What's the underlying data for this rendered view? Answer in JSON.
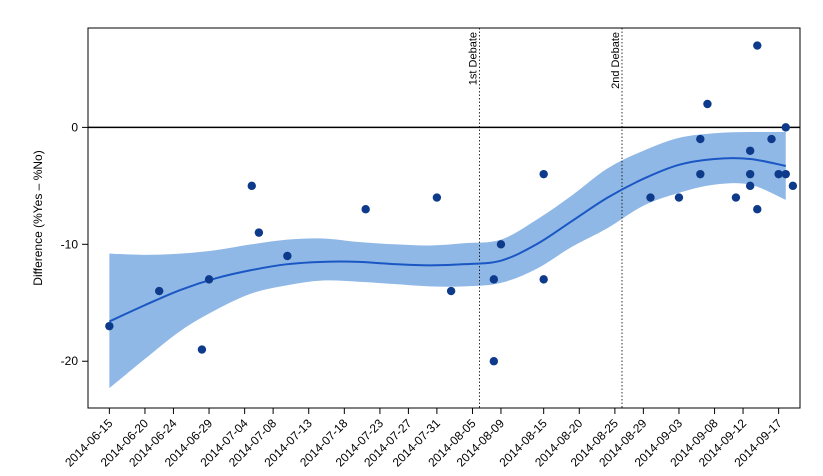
{
  "chart_data": {
    "type": "scatter",
    "ylabel": "Difference (%Yes – %No)",
    "xlabel": "",
    "ylim": [
      -24,
      8.5
    ],
    "xlim": [
      "2014-06-12",
      "2014-09-20"
    ],
    "yticks": [
      0,
      -10,
      -20
    ],
    "ytick_labels": [
      "0",
      "-10",
      "-20"
    ],
    "xticks": [
      "2014-06-15",
      "2014-06-20",
      "2014-06-24",
      "2014-06-29",
      "2014-07-04",
      "2014-07-08",
      "2014-07-13",
      "2014-07-18",
      "2014-07-23",
      "2014-07-27",
      "2014-07-31",
      "2014-08-05",
      "2014-08-09",
      "2014-08-15",
      "2014-08-20",
      "2014-08-25",
      "2014-08-29",
      "2014-09-03",
      "2014-09-08",
      "2014-09-12",
      "2014-09-17"
    ],
    "reference_line_y": 0,
    "events": [
      {
        "date": "2014-08-06",
        "label": "1st Debate"
      },
      {
        "date": "2014-08-26",
        "label": "2nd Debate"
      }
    ],
    "colors": {
      "points": "#0d3a8a",
      "trend": "#1a56c4",
      "band": "#8fb8e6",
      "frame": "#000000"
    },
    "points": [
      {
        "x": "2014-06-15",
        "y": -17
      },
      {
        "x": "2014-06-22",
        "y": -14
      },
      {
        "x": "2014-06-28",
        "y": -19
      },
      {
        "x": "2014-06-29",
        "y": -13
      },
      {
        "x": "2014-07-05",
        "y": -5
      },
      {
        "x": "2014-07-06",
        "y": -9
      },
      {
        "x": "2014-07-10",
        "y": -11
      },
      {
        "x": "2014-07-21",
        "y": -7
      },
      {
        "x": "2014-07-31",
        "y": -6
      },
      {
        "x": "2014-08-02",
        "y": -14
      },
      {
        "x": "2014-08-08",
        "y": -13
      },
      {
        "x": "2014-08-08",
        "y": -20
      },
      {
        "x": "2014-08-09",
        "y": -10
      },
      {
        "x": "2014-08-15",
        "y": -4
      },
      {
        "x": "2014-08-15",
        "y": -13
      },
      {
        "x": "2014-08-30",
        "y": -6
      },
      {
        "x": "2014-09-03",
        "y": -6
      },
      {
        "x": "2014-09-06",
        "y": -1
      },
      {
        "x": "2014-09-06",
        "y": -4
      },
      {
        "x": "2014-09-07",
        "y": 2
      },
      {
        "x": "2014-09-11",
        "y": -6
      },
      {
        "x": "2014-09-13",
        "y": -2
      },
      {
        "x": "2014-09-13",
        "y": -4
      },
      {
        "x": "2014-09-13",
        "y": -5
      },
      {
        "x": "2014-09-14",
        "y": 7
      },
      {
        "x": "2014-09-14",
        "y": -7
      },
      {
        "x": "2014-09-16",
        "y": -1
      },
      {
        "x": "2014-09-17",
        "y": -4
      },
      {
        "x": "2014-09-18",
        "y": -4
      },
      {
        "x": "2014-09-18",
        "y": 0
      },
      {
        "x": "2014-09-19",
        "y": -5
      }
    ],
    "trend": [
      {
        "x": "2014-06-15",
        "y": -16.6,
        "lo": -22.3,
        "hi": -10.8
      },
      {
        "x": "2014-06-20",
        "y": -15.2,
        "lo": -19.8,
        "hi": -10.9
      },
      {
        "x": "2014-06-25",
        "y": -13.9,
        "lo": -17.4,
        "hi": -10.8
      },
      {
        "x": "2014-06-30",
        "y": -12.9,
        "lo": -15.6,
        "hi": -10.5
      },
      {
        "x": "2014-07-05",
        "y": -12.2,
        "lo": -14.2,
        "hi": -10.0
      },
      {
        "x": "2014-07-10",
        "y": -11.7,
        "lo": -13.5,
        "hi": -9.6
      },
      {
        "x": "2014-07-15",
        "y": -11.5,
        "lo": -13.1,
        "hi": -9.5
      },
      {
        "x": "2014-07-20",
        "y": -11.5,
        "lo": -13.2,
        "hi": -9.8
      },
      {
        "x": "2014-07-25",
        "y": -11.7,
        "lo": -13.4,
        "hi": -10.0
      },
      {
        "x": "2014-07-30",
        "y": -11.8,
        "lo": -13.6,
        "hi": -10.1
      },
      {
        "x": "2014-08-04",
        "y": -11.7,
        "lo": -13.6,
        "hi": -9.9
      },
      {
        "x": "2014-08-09",
        "y": -11.4,
        "lo": -13.3,
        "hi": -9.6
      },
      {
        "x": "2014-08-14",
        "y": -10.0,
        "lo": -12.1,
        "hi": -7.9
      },
      {
        "x": "2014-08-19",
        "y": -8.0,
        "lo": -10.2,
        "hi": -5.8
      },
      {
        "x": "2014-08-24",
        "y": -6.0,
        "lo": -8.6,
        "hi": -3.5
      },
      {
        "x": "2014-08-29",
        "y": -4.4,
        "lo": -6.7,
        "hi": -2.0
      },
      {
        "x": "2014-09-03",
        "y": -3.2,
        "lo": -5.6,
        "hi": -0.9
      },
      {
        "x": "2014-09-08",
        "y": -2.7,
        "lo": -4.9,
        "hi": -0.5
      },
      {
        "x": "2014-09-13",
        "y": -2.7,
        "lo": -4.9,
        "hi": -0.4
      },
      {
        "x": "2014-09-18",
        "y": -3.3,
        "lo": -6.2,
        "hi": -0.4
      }
    ]
  }
}
